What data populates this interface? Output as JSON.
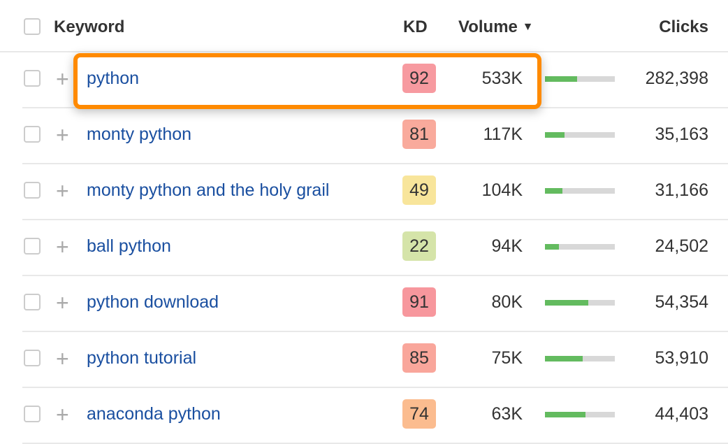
{
  "header": {
    "keyword": "Keyword",
    "kd": "KD",
    "volume": "Volume",
    "clicks": "Clicks",
    "sort_icon": "caret-down-icon"
  },
  "accent": "#ff8a00",
  "rows": [
    {
      "keyword": "python",
      "kd": "92",
      "kd_color": "#f79aa0",
      "volume": "533K",
      "clicks_fill_pct": 46,
      "clicks": "282,398",
      "highlighted": true
    },
    {
      "keyword": "monty python",
      "kd": "81",
      "kd_color": "#f9aa9c",
      "volume": "117K",
      "clicks_fill_pct": 28,
      "clicks": "35,163"
    },
    {
      "keyword": "monty python and the holy grail",
      "kd": "49",
      "kd_color": "#f8e59b",
      "volume": "104K",
      "clicks_fill_pct": 25,
      "clicks": "31,166"
    },
    {
      "keyword": "ball python",
      "kd": "22",
      "kd_color": "#d5e4a9",
      "volume": "94K",
      "clicks_fill_pct": 20,
      "clicks": "24,502"
    },
    {
      "keyword": "python download",
      "kd": "91",
      "kd_color": "#f7979d",
      "volume": "80K",
      "clicks_fill_pct": 62,
      "clicks": "54,354"
    },
    {
      "keyword": "python tutorial",
      "kd": "85",
      "kd_color": "#f9a69b",
      "volume": "75K",
      "clicks_fill_pct": 54,
      "clicks": "53,910"
    },
    {
      "keyword": "anaconda python",
      "kd": "74",
      "kd_color": "#fbbc8f",
      "volume": "63K",
      "clicks_fill_pct": 58,
      "clicks": "44,403"
    }
  ]
}
